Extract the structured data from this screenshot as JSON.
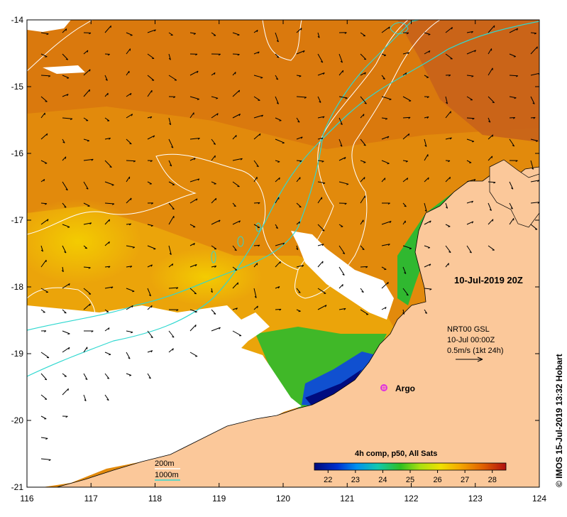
{
  "map": {
    "date_label": "10-Jul-2019 20Z",
    "credit": "© IMOS 15-Jul-2019 13:32 Hobart",
    "lon_ticks": [
      "116",
      "117",
      "118",
      "119",
      "120",
      "121",
      "122",
      "123",
      "124"
    ],
    "lat_ticks": [
      "-14",
      "-15",
      "-16",
      "-17",
      "-18",
      "-19",
      "-20",
      "-21"
    ],
    "lon_range": [
      116,
      124
    ],
    "lat_range": [
      -21,
      -14
    ],
    "current_info": {
      "line1": "NRT00 GSL",
      "line2": "10-Jul 00:00Z",
      "line3": "0.5m/s (1kt 24h)"
    },
    "argo_label": "Argo",
    "bathy_legend": {
      "label_200": "200m",
      "label_1000": "1000m",
      "color_200": "#ffffff",
      "color_1000": "#2fd8d0"
    },
    "colorbar": {
      "title": "4h comp, p50, All Sats",
      "ticks": [
        "22",
        "23",
        "24",
        "25",
        "26",
        "27",
        "28"
      ],
      "range": [
        21.5,
        28.5
      ]
    },
    "colors": {
      "land": "#fbc89a",
      "cloud": "#ffffff",
      "argo": "#e030e0"
    }
  }
}
